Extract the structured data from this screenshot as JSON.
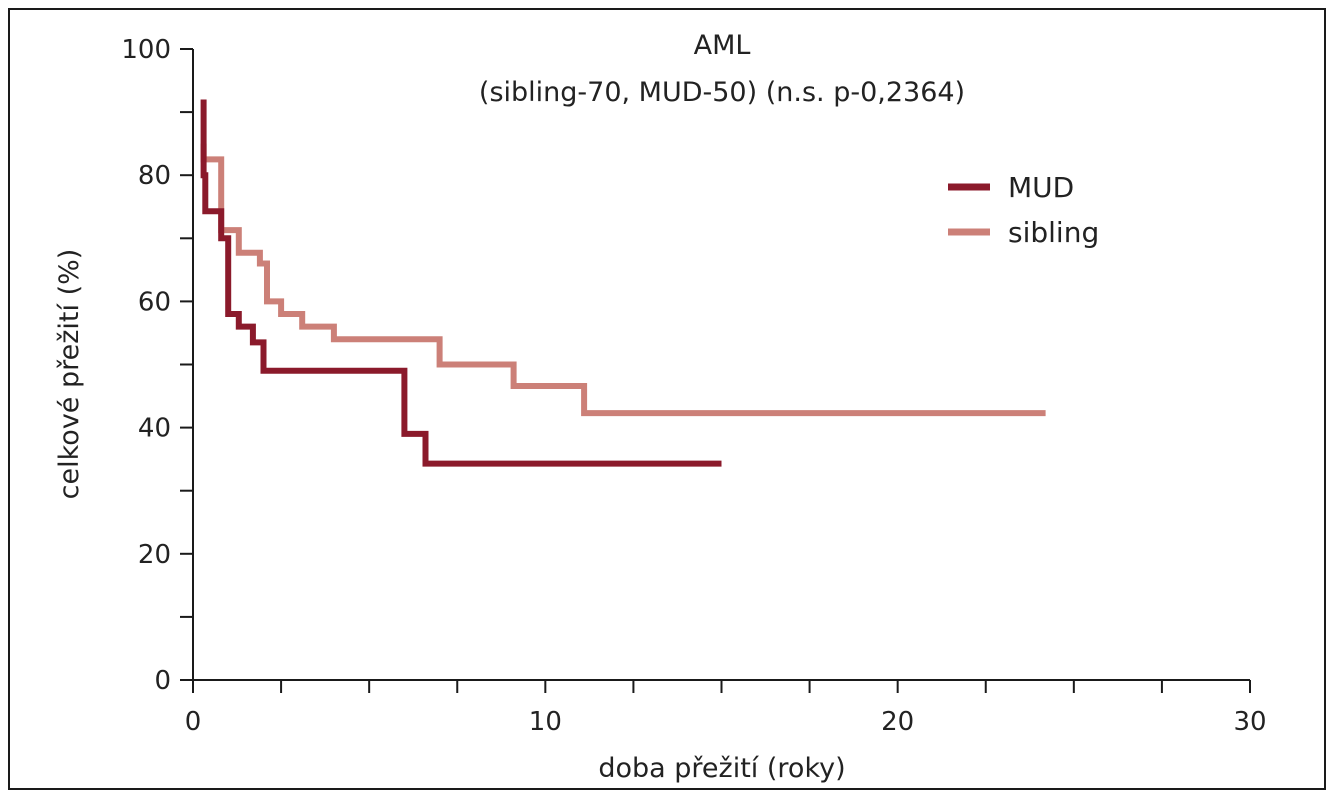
{
  "chart_data": {
    "type": "line",
    "subtype": "step (Kaplan-Meier survival)",
    "title": "AML",
    "subtitle": "(sibling-70, MUD-50) (n.s. p-0,2364)",
    "xlabel": "doba přežití (roky)",
    "ylabel": "celkové přežití (%)",
    "xlim": [
      0,
      30
    ],
    "ylim": [
      0,
      100
    ],
    "x_ticks": [
      0,
      10,
      20,
      30
    ],
    "x_tick_labels": [
      "0",
      "10",
      "20",
      "30"
    ],
    "x_minor_step": 2.5,
    "y_ticks": [
      0,
      20,
      40,
      60,
      80,
      100
    ],
    "y_tick_labels": [
      "0",
      "20",
      "40",
      "60",
      "80",
      "100"
    ],
    "y_minor_step": 10,
    "grid": false,
    "legend_position": "top-right",
    "series": [
      {
        "name": "MUD",
        "color": "#8b1a2b",
        "points": [
          [
            0.3,
            92
          ],
          [
            0.3,
            80
          ],
          [
            0.35,
            80
          ],
          [
            0.35,
            74.3
          ],
          [
            0.8,
            74.3
          ],
          [
            0.8,
            70
          ],
          [
            1.0,
            70
          ],
          [
            1.0,
            58
          ],
          [
            1.3,
            58
          ],
          [
            1.3,
            56
          ],
          [
            1.7,
            56
          ],
          [
            1.7,
            53.5
          ],
          [
            2.0,
            53.5
          ],
          [
            2.0,
            49
          ],
          [
            6.0,
            49
          ],
          [
            6.0,
            39
          ],
          [
            6.6,
            39
          ],
          [
            6.6,
            34.3
          ],
          [
            15.0,
            34.3
          ]
        ]
      },
      {
        "name": "sibling",
        "color": "#cc8078",
        "points": [
          [
            0.3,
            85
          ],
          [
            0.3,
            82.5
          ],
          [
            0.8,
            82.5
          ],
          [
            0.8,
            71.3
          ],
          [
            1.3,
            71.3
          ],
          [
            1.3,
            67.7
          ],
          [
            1.9,
            67.7
          ],
          [
            1.9,
            66
          ],
          [
            2.1,
            66
          ],
          [
            2.1,
            60
          ],
          [
            2.5,
            60
          ],
          [
            2.5,
            58
          ],
          [
            3.1,
            58
          ],
          [
            3.1,
            56
          ],
          [
            4.0,
            56
          ],
          [
            4.0,
            54
          ],
          [
            7.0,
            54
          ],
          [
            7.0,
            50
          ],
          [
            9.1,
            50
          ],
          [
            9.1,
            46.6
          ],
          [
            11.1,
            46.6
          ],
          [
            11.1,
            42.3
          ],
          [
            24.2,
            42.3
          ]
        ]
      }
    ]
  }
}
